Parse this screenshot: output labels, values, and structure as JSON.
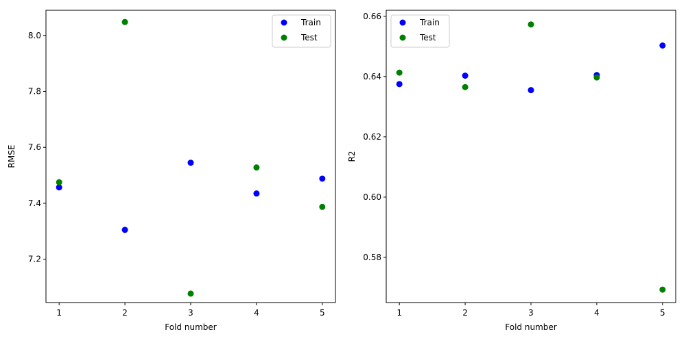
{
  "chart_data": [
    {
      "type": "scatter",
      "xlabel": "Fold number",
      "ylabel": "RMSE",
      "xlim": [
        0.8,
        5.2
      ],
      "ylim": [
        7.045,
        8.09
      ],
      "xticks": [
        1,
        2,
        3,
        4,
        5
      ],
      "yticks": [
        7.2,
        7.4,
        7.6,
        7.8,
        8.0
      ],
      "ytick_labels": [
        "7.2",
        "7.4",
        "7.6",
        "7.8",
        "8.0"
      ],
      "grid": false,
      "legend_position": "top-right",
      "series": [
        {
          "name": "Train",
          "color": "#0000ff",
          "x": [
            1,
            2,
            3,
            4,
            5
          ],
          "y": [
            7.457,
            7.305,
            7.545,
            7.435,
            7.488
          ]
        },
        {
          "name": "Test",
          "color": "#008000",
          "x": [
            1,
            2,
            3,
            4,
            5
          ],
          "y": [
            7.475,
            8.048,
            7.077,
            7.528,
            7.387
          ]
        }
      ]
    },
    {
      "type": "scatter",
      "xlabel": "Fold number",
      "ylabel": "R2",
      "xlim": [
        0.8,
        5.2
      ],
      "ylim": [
        0.565,
        0.662
      ],
      "xticks": [
        1,
        2,
        3,
        4,
        5
      ],
      "yticks": [
        0.58,
        0.6,
        0.62,
        0.64,
        0.66
      ],
      "ytick_labels": [
        "0.58",
        "0.60",
        "0.62",
        "0.64",
        "0.66"
      ],
      "grid": false,
      "legend_position": "top-left",
      "series": [
        {
          "name": "Train",
          "color": "#0000ff",
          "x": [
            1,
            2,
            3,
            4,
            5
          ],
          "y": [
            0.6375,
            0.6403,
            0.6355,
            0.6405,
            0.6503
          ]
        },
        {
          "name": "Test",
          "color": "#008000",
          "x": [
            1,
            2,
            3,
            4,
            5
          ],
          "y": [
            0.6413,
            0.6365,
            0.6573,
            0.6397,
            0.5693
          ]
        }
      ]
    }
  ]
}
